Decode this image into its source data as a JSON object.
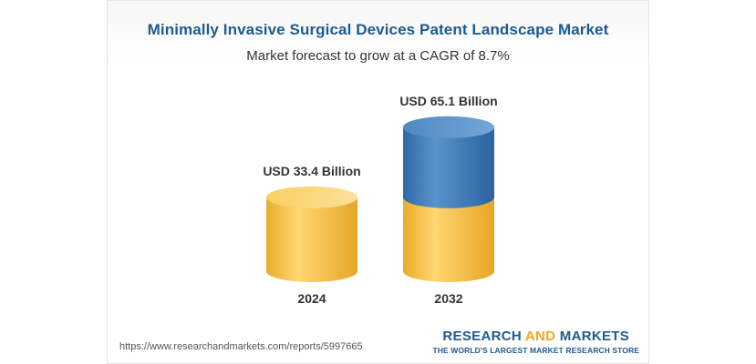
{
  "chart_data": {
    "type": "bar",
    "title": "Minimally Invasive Surgical Devices Patent Landscape Market",
    "subtitle": "Market forecast to grow at a CAGR of 8.7%",
    "categories": [
      "2024",
      "2032"
    ],
    "values": [
      33.4,
      65.1
    ],
    "data_labels": [
      "USD 33.4 Billion",
      "USD 65.1 Billion"
    ],
    "style": "3d-cylinder",
    "colors": {
      "base": "#f5c24a",
      "growth": "#3d78b4"
    }
  },
  "footer": {
    "source_url": "https://www.researchandmarkets.com/reports/5997665",
    "brand_part1": "RESEARCH ",
    "brand_part2": "AND",
    "brand_part3": " MARKETS",
    "brand_tagline": "THE WORLD'S LARGEST MARKET RESEARCH STORE"
  }
}
